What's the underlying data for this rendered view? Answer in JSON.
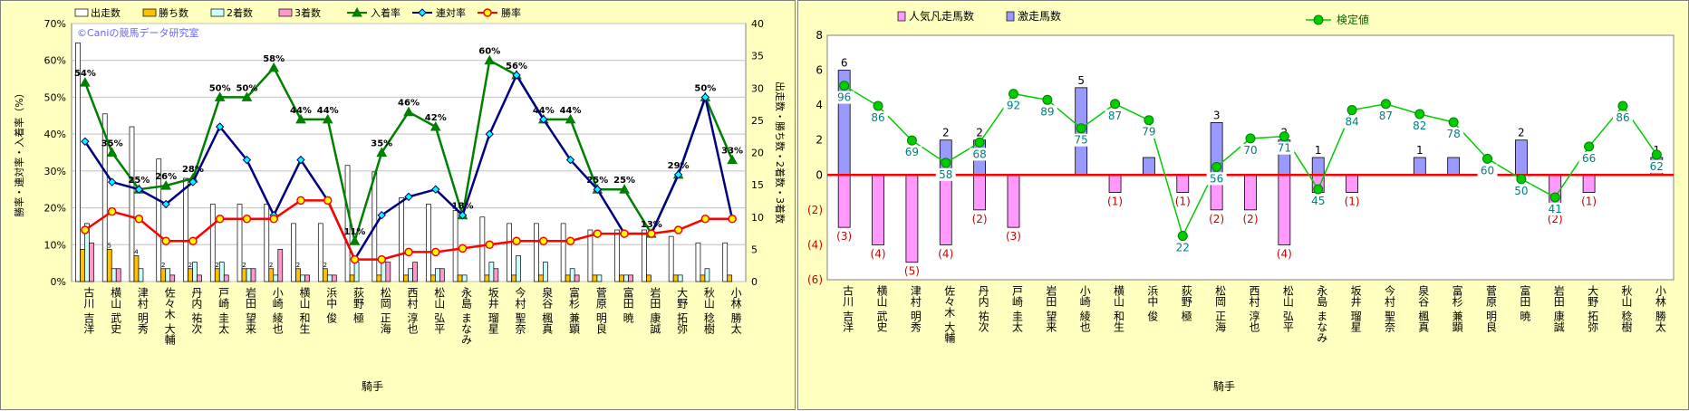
{
  "jockeys": [
    "古川 吉洋",
    "横山 武史",
    "津村 明秀",
    "佐々木 大輔",
    "丹内 祐次",
    "戸崎 圭太",
    "岩田 望来",
    "小崎 綾也",
    "横山 和生",
    "浜中 俊",
    "荻野 極",
    "松岡 正海",
    "西村 淳也",
    "松山 弘平",
    "永島 まなみ",
    "坂井 瑠星",
    "今村 聖奈",
    "泉谷 楓真",
    "富杉 兼顕",
    "菅原 明良",
    "富田 暁",
    "岩田 康誠",
    "大野 拓弥",
    "秋山 稔樹",
    "小林 勝太"
  ],
  "chart_data": [
    {
      "type": "bar+line",
      "watermark": "©Caniの競馬データ研究室",
      "xlabel": "騎手",
      "ylabel_left": "勝率・連対率・入着率（%）",
      "ylabel_right": "出走数・勝ち数・2着数・3着数",
      "ylim_left": [
        0,
        70
      ],
      "ylim_right": [
        0,
        40
      ],
      "left_ticks": [
        "0%",
        "10%",
        "20%",
        "30%",
        "40%",
        "50%",
        "60%",
        "70%"
      ],
      "right_ticks": [
        "0",
        "5",
        "10",
        "15",
        "20",
        "25",
        "30",
        "35",
        "40"
      ],
      "bar_series": [
        {
          "name": "出走数",
          "color": "#ffffff",
          "values": [
            37,
            26,
            24,
            19,
            16,
            12,
            12,
            12,
            9,
            9,
            18,
            17,
            13,
            12,
            11,
            10,
            9,
            9,
            9,
            8,
            8,
            8,
            7,
            6,
            6
          ]
        },
        {
          "name": "勝ち数",
          "color": "#ffc000",
          "values": [
            5,
            5,
            4,
            2,
            2,
            2,
            2,
            2,
            2,
            2,
            1,
            1,
            1,
            1,
            1,
            1,
            1,
            1,
            1,
            1,
            1,
            1,
            1,
            1,
            1
          ]
        },
        {
          "name": "2着数",
          "color": "#ccffff",
          "values": [
            9,
            2,
            2,
            2,
            3,
            3,
            2,
            1,
            1,
            1,
            3,
            3,
            2,
            2,
            1,
            3,
            4,
            3,
            2,
            1,
            1,
            0,
            1,
            2,
            0
          ]
        },
        {
          "name": "3着数",
          "color": "#ff99cc",
          "values": [
            6,
            2,
            0,
            1,
            1,
            1,
            2,
            5,
            1,
            1,
            0,
            3,
            3,
            2,
            0,
            2,
            0,
            0,
            1,
            0,
            1,
            0,
            0,
            0,
            0
          ]
        }
      ],
      "line_series": [
        {
          "name": "入着率",
          "color": "#008000",
          "marker": "triangle",
          "values": [
            54,
            35,
            25,
            26,
            28,
            50,
            50,
            58,
            44,
            44,
            11,
            35,
            46,
            42,
            18,
            60,
            56,
            44,
            44,
            25,
            25,
            13,
            29,
            50,
            33
          ],
          "labels": [
            "54%",
            "35%",
            "25%",
            "26%",
            "28%",
            "50%",
            "50%",
            "58%",
            "44%",
            "44%",
            "11%",
            "35%",
            "46%",
            "42%",
            "18%",
            "60%",
            "56%",
            "44%",
            "44%",
            "25%",
            "25%",
            "13%",
            "29%",
            "50%",
            "33%"
          ]
        },
        {
          "name": "連対率",
          "color": "#000080",
          "marker": "diamond",
          "values": [
            38,
            27,
            25,
            21,
            27,
            42,
            33,
            18,
            33,
            22,
            6,
            18,
            23,
            25,
            18,
            40,
            56,
            44,
            33,
            25,
            13,
            13,
            29,
            50,
            17
          ]
        },
        {
          "name": "勝率",
          "color": "#ff0000",
          "marker": "circle",
          "values": [
            14,
            19,
            17,
            11,
            11,
            17,
            17,
            17,
            22,
            22,
            6,
            6,
            8,
            8,
            9,
            10,
            11,
            11,
            11,
            13,
            13,
            13,
            14,
            17,
            17
          ]
        }
      ],
      "bar_labels": {
        "出走数": [
          "",
          "",
          "",
          "",
          "",
          "",
          "",
          "",
          "",
          "",
          "",
          "",
          "",
          "",
          "",
          "",
          "",
          "",
          "",
          "",
          "",
          "",
          "",
          "",
          ""
        ],
        "勝ち数": [
          "",
          "5",
          "4",
          "2",
          "2",
          "2",
          "2",
          "2",
          "2",
          "2",
          "",
          "",
          "",
          "",
          "",
          "",
          "",
          "",
          "",
          "",
          "",
          "",
          "",
          "",
          ""
        ]
      },
      "legend": "top",
      "grid": "horizontal"
    },
    {
      "type": "bar+line",
      "xlabel": "騎手",
      "ylim": [
        -6,
        8
      ],
      "ticks": [
        "(6)",
        "(4)",
        "(2)",
        "0",
        "2",
        "4",
        "6",
        "8"
      ],
      "bar_series": [
        {
          "name": "人気凡走馬数",
          "color": "#ff99ff",
          "values": [
            -3,
            -4,
            -5,
            -4,
            -2,
            -3,
            0,
            0,
            -1,
            0,
            -1,
            -2,
            -2,
            -4,
            -1,
            -1,
            0,
            0,
            0,
            0,
            0,
            -2,
            -1,
            0,
            0
          ]
        },
        {
          "name": "激走馬数",
          "color": "#9999ff",
          "values": [
            6,
            0,
            0,
            2,
            2,
            0,
            0,
            5,
            0,
            1,
            0,
            3,
            0,
            2,
            1,
            0,
            0,
            1,
            1,
            0,
            2,
            0,
            0,
            0,
            1
          ]
        }
      ],
      "bar_top_labels": [
        "6",
        "",
        "",
        "2",
        "2",
        "",
        "",
        "5",
        "",
        "",
        "",
        "3",
        "",
        "2",
        "1",
        "",
        "",
        "1",
        "",
        "",
        "2",
        "",
        "",
        "",
        "1"
      ],
      "bar_bottom_labels": [
        "(3)",
        "(4)",
        "(5)",
        "(4)",
        "(2)",
        "(3)",
        "",
        "",
        "(1)",
        "",
        "(1)",
        "(2)",
        "(2)",
        "(4)",
        "",
        "(1)",
        "",
        "",
        "",
        "",
        "",
        "(2)",
        "(1)",
        "",
        ""
      ],
      "line_series": [
        {
          "name": "検定値",
          "color": "#00cc00",
          "marker": "circle",
          "values": [
            96,
            86,
            69,
            58,
            68,
            92,
            89,
            75,
            87,
            79,
            22,
            56,
            70,
            71,
            45,
            84,
            87,
            82,
            78,
            60,
            50,
            41,
            66,
            86,
            62
          ]
        }
      ],
      "legend": "top",
      "zero_line_color": "#ff0000"
    }
  ]
}
